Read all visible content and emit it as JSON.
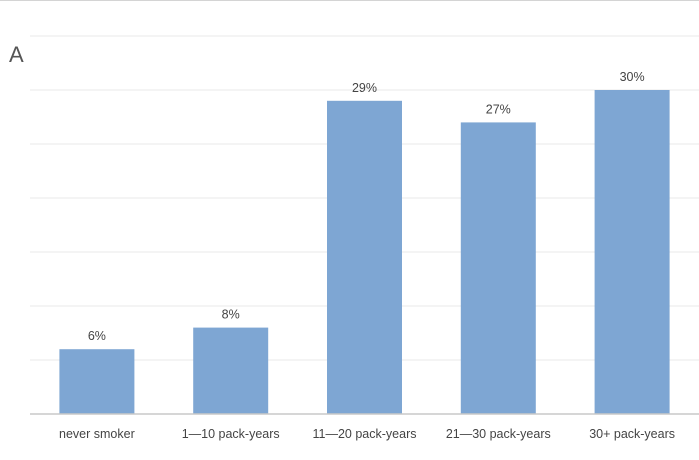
{
  "panel_label": "A",
  "chart_data": {
    "type": "bar",
    "title": "",
    "xlabel": "",
    "ylabel": "",
    "categories": [
      "never smoker",
      "1—10 pack-years",
      "11—20 pack-years",
      "21—30 pack-years",
      "30+ pack-years"
    ],
    "values": [
      6,
      8,
      29,
      27,
      30
    ],
    "data_labels": [
      "6%",
      "8%",
      "29%",
      "27%",
      "30%"
    ],
    "ylim": [
      0,
      35
    ],
    "grid": true,
    "bar_color": "#7ea6d3",
    "grid_color": "#e9e9e9",
    "axis_color": "#c8c8c8"
  }
}
